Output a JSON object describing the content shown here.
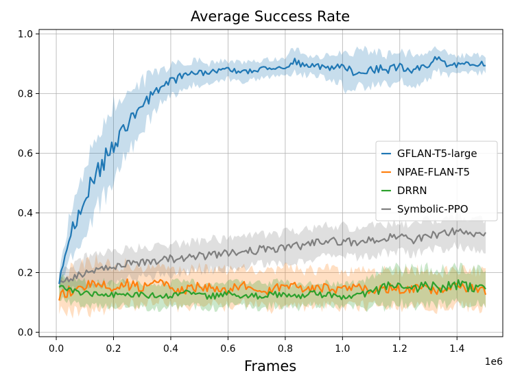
{
  "chart_data": {
    "type": "line",
    "title": "Average Success Rate",
    "xlabel": "Frames",
    "ylabel": "",
    "x_offset_label": "1e6",
    "xlim": [
      -0.06,
      1.56
    ],
    "ylim": [
      -0.015,
      1.015
    ],
    "xticks": [
      0.0,
      0.2,
      0.4,
      0.6,
      0.8,
      1.0,
      1.2,
      1.4
    ],
    "xtick_labels": [
      "0.0",
      "0.2",
      "0.4",
      "0.6",
      "0.8",
      "1.0",
      "1.2",
      "1.4"
    ],
    "yticks": [
      0.0,
      0.2,
      0.4,
      0.6,
      0.8,
      1.0
    ],
    "ytick_labels": [
      "0.0",
      "0.2",
      "0.4",
      "0.6",
      "0.8",
      "1.0"
    ],
    "grid": true,
    "legend_position": "center-right",
    "series": [
      {
        "name": "GFLAN-T5-large",
        "color": "#1f77b4",
        "x": [
          0.01,
          0.03,
          0.05,
          0.08,
          0.1,
          0.12,
          0.15,
          0.18,
          0.2,
          0.22,
          0.25,
          0.28,
          0.3,
          0.33,
          0.35,
          0.38,
          0.4,
          0.43,
          0.45,
          0.48,
          0.5,
          0.53,
          0.55,
          0.6,
          0.65,
          0.7,
          0.75,
          0.8,
          0.83,
          0.85,
          0.9,
          0.95,
          1.0,
          1.02,
          1.05,
          1.1,
          1.15,
          1.2,
          1.25,
          1.3,
          1.33,
          1.35,
          1.4,
          1.45,
          1.5
        ],
        "mean": [
          0.17,
          0.25,
          0.33,
          0.4,
          0.45,
          0.5,
          0.55,
          0.6,
          0.63,
          0.66,
          0.7,
          0.73,
          0.76,
          0.79,
          0.81,
          0.83,
          0.84,
          0.855,
          0.86,
          0.87,
          0.87,
          0.865,
          0.875,
          0.88,
          0.87,
          0.88,
          0.885,
          0.89,
          0.91,
          0.9,
          0.895,
          0.885,
          0.89,
          0.875,
          0.88,
          0.885,
          0.88,
          0.89,
          0.88,
          0.89,
          0.92,
          0.9,
          0.895,
          0.9,
          0.9
        ],
        "spread": [
          0.03,
          0.05,
          0.08,
          0.1,
          0.12,
          0.12,
          0.13,
          0.13,
          0.12,
          0.11,
          0.1,
          0.09,
          0.08,
          0.07,
          0.06,
          0.05,
          0.05,
          0.05,
          0.04,
          0.04,
          0.04,
          0.03,
          0.03,
          0.03,
          0.03,
          0.03,
          0.03,
          0.03,
          0.04,
          0.04,
          0.03,
          0.04,
          0.05,
          0.08,
          0.06,
          0.06,
          0.05,
          0.05,
          0.05,
          0.04,
          0.04,
          0.04,
          0.03,
          0.03,
          0.03
        ]
      },
      {
        "name": "NPAE-FLAN-T5",
        "color": "#ff7f0e",
        "x": [
          0.01,
          0.05,
          0.1,
          0.15,
          0.2,
          0.25,
          0.3,
          0.35,
          0.4,
          0.45,
          0.5,
          0.55,
          0.6,
          0.65,
          0.7,
          0.75,
          0.8,
          0.85,
          0.9,
          0.95,
          1.0,
          1.05,
          1.1,
          1.15,
          1.2,
          1.25,
          1.3,
          1.35,
          1.4,
          1.45,
          1.5
        ],
        "mean": [
          0.12,
          0.14,
          0.15,
          0.16,
          0.155,
          0.16,
          0.15,
          0.165,
          0.15,
          0.14,
          0.155,
          0.15,
          0.145,
          0.16,
          0.15,
          0.14,
          0.155,
          0.15,
          0.145,
          0.15,
          0.14,
          0.15,
          0.145,
          0.15,
          0.14,
          0.15,
          0.145,
          0.14,
          0.15,
          0.145,
          0.14
        ],
        "spread": [
          0.05,
          0.07,
          0.08,
          0.08,
          0.07,
          0.07,
          0.06,
          0.06,
          0.06,
          0.06,
          0.06,
          0.06,
          0.06,
          0.06,
          0.06,
          0.06,
          0.06,
          0.06,
          0.06,
          0.06,
          0.06,
          0.06,
          0.06,
          0.06,
          0.06,
          0.06,
          0.06,
          0.06,
          0.06,
          0.06,
          0.06
        ]
      },
      {
        "name": "DRRN",
        "color": "#2ca02c",
        "x": [
          0.01,
          0.05,
          0.1,
          0.15,
          0.2,
          0.25,
          0.3,
          0.35,
          0.4,
          0.45,
          0.5,
          0.55,
          0.6,
          0.65,
          0.7,
          0.75,
          0.8,
          0.85,
          0.9,
          0.95,
          1.0,
          1.05,
          1.1,
          1.15,
          1.2,
          1.25,
          1.3,
          1.35,
          1.4,
          1.45,
          1.5
        ],
        "mean": [
          0.15,
          0.14,
          0.13,
          0.13,
          0.125,
          0.13,
          0.125,
          0.12,
          0.125,
          0.13,
          0.125,
          0.12,
          0.13,
          0.125,
          0.12,
          0.13,
          0.125,
          0.12,
          0.13,
          0.125,
          0.12,
          0.125,
          0.13,
          0.15,
          0.16,
          0.15,
          0.155,
          0.15,
          0.16,
          0.15,
          0.155
        ],
        "spread": [
          0.04,
          0.04,
          0.04,
          0.04,
          0.04,
          0.04,
          0.04,
          0.04,
          0.04,
          0.04,
          0.04,
          0.04,
          0.04,
          0.04,
          0.04,
          0.04,
          0.04,
          0.04,
          0.04,
          0.04,
          0.04,
          0.04,
          0.05,
          0.06,
          0.06,
          0.06,
          0.06,
          0.06,
          0.06,
          0.06,
          0.06
        ]
      },
      {
        "name": "Symbolic-PPO",
        "color": "#7f7f7f",
        "x": [
          0.01,
          0.05,
          0.1,
          0.15,
          0.2,
          0.25,
          0.3,
          0.35,
          0.4,
          0.45,
          0.5,
          0.55,
          0.6,
          0.65,
          0.7,
          0.75,
          0.8,
          0.85,
          0.9,
          0.95,
          1.0,
          1.05,
          1.1,
          1.15,
          1.2,
          1.25,
          1.3,
          1.35,
          1.4,
          1.45,
          1.5
        ],
        "mean": [
          0.17,
          0.18,
          0.2,
          0.21,
          0.22,
          0.23,
          0.235,
          0.24,
          0.245,
          0.25,
          0.255,
          0.26,
          0.265,
          0.27,
          0.275,
          0.28,
          0.285,
          0.29,
          0.3,
          0.31,
          0.305,
          0.3,
          0.31,
          0.315,
          0.32,
          0.31,
          0.325,
          0.33,
          0.34,
          0.33,
          0.33
        ],
        "spread": [
          0.03,
          0.04,
          0.05,
          0.05,
          0.05,
          0.05,
          0.05,
          0.05,
          0.05,
          0.05,
          0.05,
          0.05,
          0.05,
          0.05,
          0.05,
          0.05,
          0.05,
          0.05,
          0.05,
          0.05,
          0.05,
          0.05,
          0.05,
          0.05,
          0.05,
          0.05,
          0.05,
          0.05,
          0.05,
          0.05,
          0.05
        ]
      }
    ]
  }
}
